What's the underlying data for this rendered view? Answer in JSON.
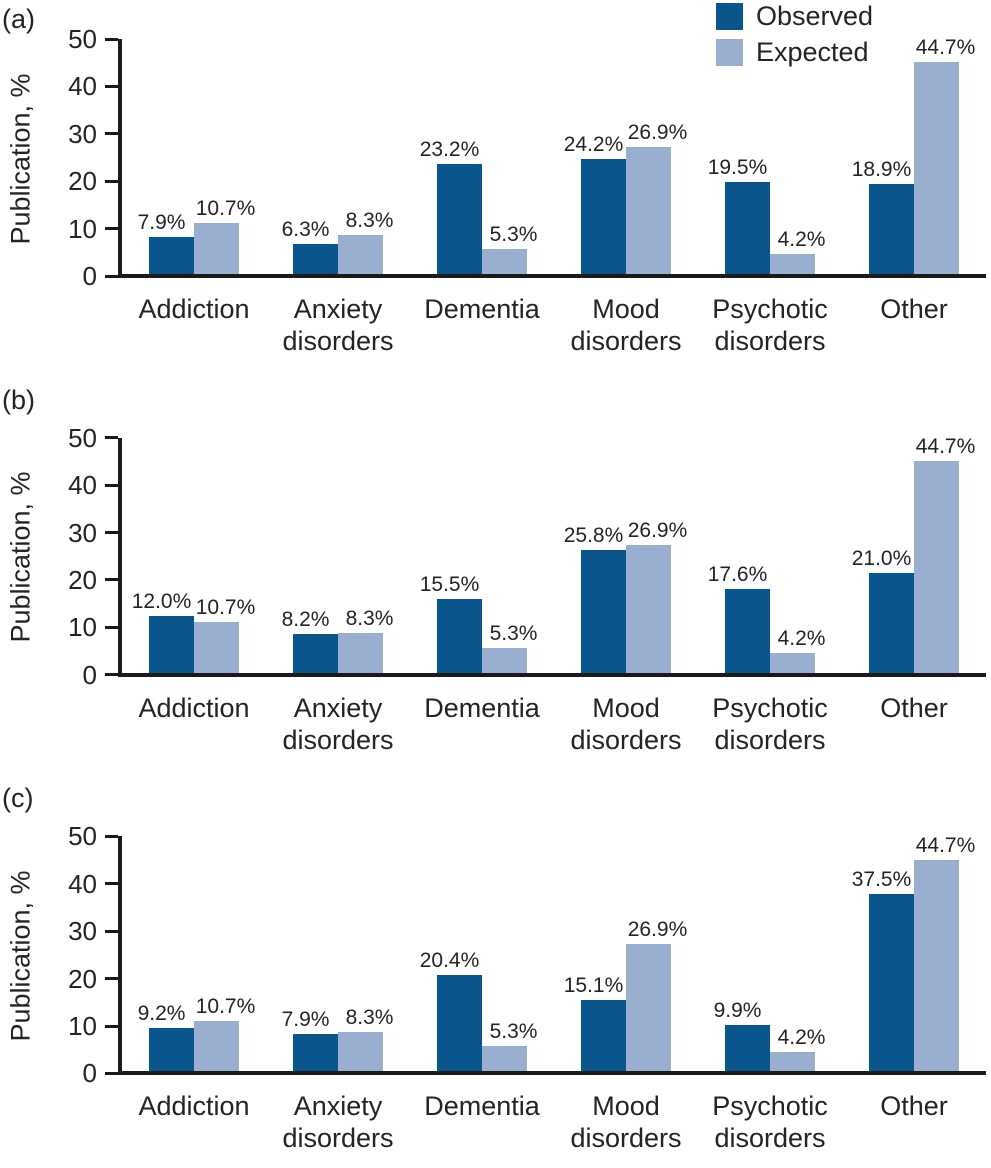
{
  "colors": {
    "observed": "#0A568C",
    "expected": "#9AAFD0",
    "axis": "#1A1A1A",
    "text": "#262324"
  },
  "legend": {
    "position": "top-right-panel-a",
    "items": [
      {
        "label": "Observed",
        "color_key": "observed"
      },
      {
        "label": "Expected",
        "color_key": "expected"
      }
    ]
  },
  "categories": [
    "Addiction",
    "Anxiety disorders",
    "Dementia",
    "Mood disorders",
    "Psychotic disorders",
    "Other"
  ],
  "chart_data": [
    {
      "type": "bar",
      "panel": "(a)",
      "title": "",
      "xlabel": "",
      "ylabel": "Publication, %",
      "ylim": [
        0,
        50
      ],
      "yticks": [
        0,
        10,
        20,
        30,
        40,
        50
      ],
      "grid": false,
      "legend_position": "top-right",
      "categories": [
        "Addiction",
        "Anxiety disorders",
        "Dementia",
        "Mood disorders",
        "Psychotic disorders",
        "Other"
      ],
      "series": [
        {
          "name": "Observed",
          "values": [
            7.9,
            6.3,
            23.2,
            24.2,
            19.5,
            18.9
          ]
        },
        {
          "name": "Expected",
          "values": [
            10.7,
            8.3,
            5.3,
            26.9,
            4.2,
            44.7
          ]
        }
      ],
      "value_label_format": "{value}%"
    },
    {
      "type": "bar",
      "panel": "(b)",
      "title": "",
      "xlabel": "",
      "ylabel": "Publication, %",
      "ylim": [
        0,
        50
      ],
      "yticks": [
        0,
        10,
        20,
        30,
        40,
        50
      ],
      "grid": false,
      "legend_position": "none",
      "categories": [
        "Addiction",
        "Anxiety disorders",
        "Dementia",
        "Mood disorders",
        "Psychotic disorders",
        "Other"
      ],
      "series": [
        {
          "name": "Observed",
          "values": [
            12.0,
            8.2,
            15.5,
            25.8,
            17.6,
            21.0
          ]
        },
        {
          "name": "Expected",
          "values": [
            10.7,
            8.3,
            5.3,
            26.9,
            4.2,
            44.7
          ]
        }
      ],
      "value_label_format": "{value}%"
    },
    {
      "type": "bar",
      "panel": "(c)",
      "title": "",
      "xlabel": "",
      "ylabel": "Publication, %",
      "ylim": [
        0,
        50
      ],
      "yticks": [
        0,
        10,
        20,
        30,
        40,
        50
      ],
      "grid": false,
      "legend_position": "none",
      "categories": [
        "Addiction",
        "Anxiety disorders",
        "Dementia",
        "Mood disorders",
        "Psychotic disorders",
        "Other"
      ],
      "series": [
        {
          "name": "Observed",
          "values": [
            9.2,
            7.9,
            20.4,
            15.1,
            9.9,
            37.5
          ]
        },
        {
          "name": "Expected",
          "values": [
            10.7,
            8.3,
            5.3,
            26.9,
            4.2,
            44.7
          ]
        }
      ],
      "value_label_format": "{value}%"
    }
  ]
}
